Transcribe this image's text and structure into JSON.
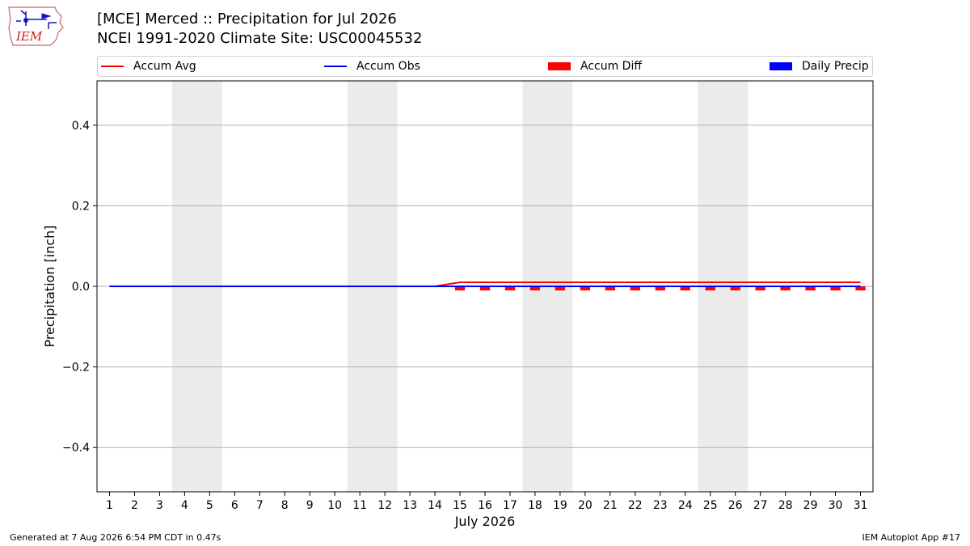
{
  "header": {
    "logo_text": "IEM",
    "title_line1": "[MCE] Merced :: Precipitation for Jul 2026",
    "title_line2": "NCEI 1991-2020 Climate Site: USC00045532"
  },
  "legend": [
    {
      "label": "Accum Avg",
      "kind": "line",
      "color": "#ff0000"
    },
    {
      "label": "Accum Obs",
      "kind": "line",
      "color": "#0000ff"
    },
    {
      "label": "Accum Diff",
      "kind": "patch",
      "color": "#ff0000"
    },
    {
      "label": "Daily Precip",
      "kind": "patch",
      "color": "#0000ff"
    }
  ],
  "chart_data": {
    "type": "line",
    "xlabel": "July 2026",
    "ylabel": "Precipitation [inch]",
    "x": [
      1,
      2,
      3,
      4,
      5,
      6,
      7,
      8,
      9,
      10,
      11,
      12,
      13,
      14,
      15,
      16,
      17,
      18,
      19,
      20,
      21,
      22,
      23,
      24,
      25,
      26,
      27,
      28,
      29,
      30,
      31
    ],
    "xlim": [
      0.5,
      31.5
    ],
    "ylim": [
      -0.51,
      0.51
    ],
    "yticks": [
      -0.4,
      -0.2,
      0.0,
      0.2,
      0.4
    ],
    "ytick_labels": [
      "−0.4",
      "−0.2",
      "0.0",
      "0.2",
      "0.4"
    ],
    "grid": "horizontal",
    "weekend_shading": [
      [
        3.5,
        5.5
      ],
      [
        10.5,
        12.5
      ],
      [
        17.5,
        19.5
      ],
      [
        24.5,
        26.5
      ]
    ],
    "weekend_color": "#ebebeb",
    "series": [
      {
        "name": "Accum Avg",
        "kind": "line",
        "color": "#ff0000",
        "values": [
          0,
          0,
          0,
          0,
          0,
          0,
          0,
          0,
          0,
          0,
          0,
          0,
          0,
          0,
          0.01,
          0.01,
          0.01,
          0.01,
          0.01,
          0.01,
          0.01,
          0.01,
          0.01,
          0.01,
          0.01,
          0.01,
          0.01,
          0.01,
          0.01,
          0.01,
          0.01
        ]
      },
      {
        "name": "Accum Obs",
        "kind": "line",
        "color": "#0000ff",
        "values": [
          0,
          0,
          0,
          0,
          0,
          0,
          0,
          0,
          0,
          0,
          0,
          0,
          0,
          0,
          0,
          0,
          0,
          0,
          0,
          0,
          0,
          0,
          0,
          0,
          0,
          0,
          0,
          0,
          0,
          0,
          0
        ]
      },
      {
        "name": "Accum Diff",
        "kind": "bar",
        "color": "#ff0000",
        "values": [
          0,
          0,
          0,
          0,
          0,
          0,
          0,
          0,
          0,
          0,
          0,
          0,
          0,
          0,
          -0.01,
          -0.01,
          -0.01,
          -0.01,
          -0.01,
          -0.01,
          -0.01,
          -0.01,
          -0.01,
          -0.01,
          -0.01,
          -0.01,
          -0.01,
          -0.01,
          -0.01,
          -0.01,
          -0.01
        ]
      },
      {
        "name": "Daily Precip",
        "kind": "bar",
        "color": "#0000ff",
        "values": [
          0,
          0,
          0,
          0,
          0,
          0,
          0,
          0,
          0,
          0,
          0,
          0,
          0,
          0,
          0,
          0,
          0,
          0,
          0,
          0,
          0,
          0,
          0,
          0,
          0,
          0,
          0,
          0,
          0,
          0,
          0
        ]
      }
    ]
  },
  "footer": {
    "left": "Generated at 7 Aug 2026 6:54 PM CDT in 0.47s",
    "right": "IEM Autoplot App #17"
  }
}
